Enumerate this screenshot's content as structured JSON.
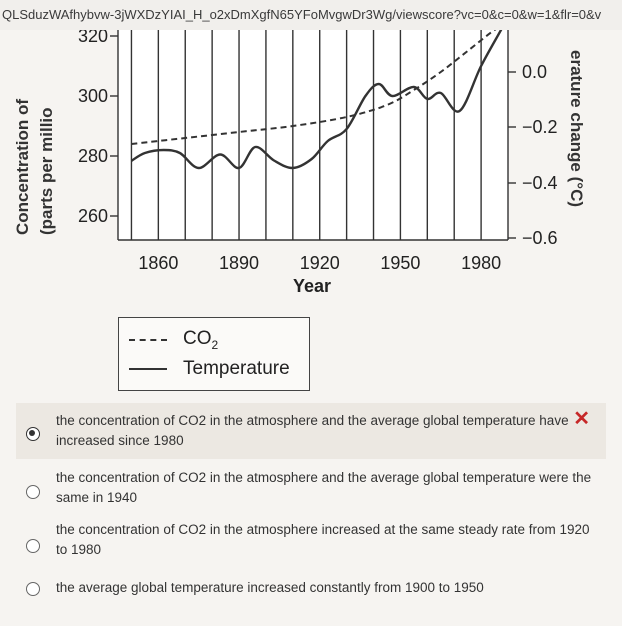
{
  "url_text": "QLSduzWAfhybvw-3jWXDzYIAI_H_o2xDmXgfN65YFoMvgwDr3Wg/viewscore?vc=0&c=0&w=1&flr=0&v",
  "chart_data": {
    "type": "line",
    "xlabel": "Year",
    "ylabel_left_line1": "Concentration of",
    "ylabel_left_line2": "(parts per millio",
    "ylabel_right": "erature change (°C)",
    "x_ticks": [
      "1860",
      "1890",
      "1920",
      "1950",
      "1980"
    ],
    "left_ticks": [
      "320",
      "300",
      "280",
      "260"
    ],
    "right_ticks": [
      "0.0",
      "-0.2",
      "-0.4",
      "-0.6"
    ],
    "xlim": [
      1845,
      1990
    ],
    "ylim_left": [
      252,
      322
    ],
    "series": [
      {
        "name": "CO2",
        "style": "dashed",
        "x": [
          1850,
          1870,
          1890,
          1910,
          1930,
          1945,
          1955,
          1965,
          1975,
          1985,
          1990
        ],
        "y": [
          284,
          286,
          288,
          290,
          293,
          297,
          302,
          308,
          315,
          322,
          324
        ]
      },
      {
        "name": "Temperature",
        "style": "solid",
        "x": [
          1850,
          1855,
          1862,
          1868,
          1875,
          1883,
          1890,
          1896,
          1903,
          1910,
          1917,
          1923,
          1930,
          1937,
          1942,
          1947,
          1955,
          1960,
          1965,
          1972,
          1980,
          1988,
          1992
        ],
        "y": [
          278.4,
          281,
          282,
          281,
          276,
          280.5,
          276,
          283,
          278.5,
          276,
          279,
          285,
          289,
          300,
          304,
          300,
          303,
          299,
          301,
          295,
          310,
          323,
          330
        ]
      }
    ]
  },
  "legend": {
    "co2_main": "CO",
    "co2_sub": "2",
    "temp_label": "Temperature"
  },
  "options": [
    {
      "text": "the concentration of CO2 in the atmosphere and the average global temperature have increased since 1980",
      "mark": "✕"
    },
    {
      "text": "the concentration of CO2 in the atmosphere and the average global temperature were the same in 1940"
    },
    {
      "text": "the concentration of CO2 in the atmosphere increased at the same steady rate from 1920 to 1980"
    },
    {
      "text": "the average global temperature increased constantly from 1900 to 1950"
    }
  ]
}
